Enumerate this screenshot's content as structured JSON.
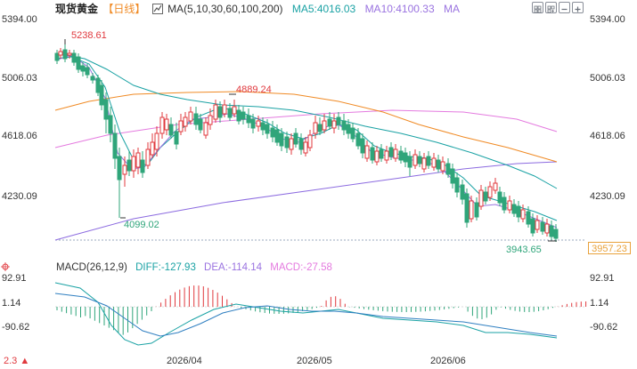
{
  "header": {
    "instrument": "现货黄金",
    "period_label": "【日线】",
    "ma_label": "MA(5,10,30,60,100,200)",
    "ma5_label": "MA5:4016.03",
    "ma10_label": "MA10:4100.33",
    "ma_more_label": "MA"
  },
  "toolbar": {
    "icons": [
      "grid-icon",
      "grid-add-icon",
      "minus-icon",
      "plus-icon"
    ]
  },
  "y_axis": {
    "labels_left": [
      "5394.00",
      "5006.03",
      "4618.06",
      "4230.09"
    ],
    "labels_right": [
      "5394.00",
      "5006.03",
      "4618.06",
      "4230.09"
    ]
  },
  "annotations": {
    "high": "5238.61",
    "mid_high": "4889.24",
    "low_left": "4099.02",
    "low_right": "3943.65"
  },
  "last_price": "3957.23",
  "macd": {
    "title": "MACD(26,12,9)",
    "diff_label": "DIFF:-127.93",
    "dea_label": "DEA:-114.14",
    "macd_label": "MACD:-27.58",
    "labels_left": [
      "92.91",
      "1.14",
      "-90.62"
    ],
    "labels_right": [
      "92.91",
      "1.14",
      "-90.62"
    ]
  },
  "x_axis": {
    "labels": [
      "2026/04",
      "2026/05",
      "2026/06"
    ]
  },
  "corner_icon": "crosshair-icon",
  "footer_text": "2.3",
  "colors": {
    "up": "#e0393e",
    "down": "#2fa57a",
    "ma5": "#1aa2a4",
    "ma10": "#9a73e0",
    "ma_long_orange": "#f08a24",
    "ma_long_purple": "#8c6be0",
    "ma_long_pink": "#e47adf",
    "price_tag": "#e9a23b",
    "header_title": "#222222",
    "header_period": "#f08a24",
    "header_ma5": "#1aa2a4",
    "header_ma10": "#9a73e0"
  }
}
